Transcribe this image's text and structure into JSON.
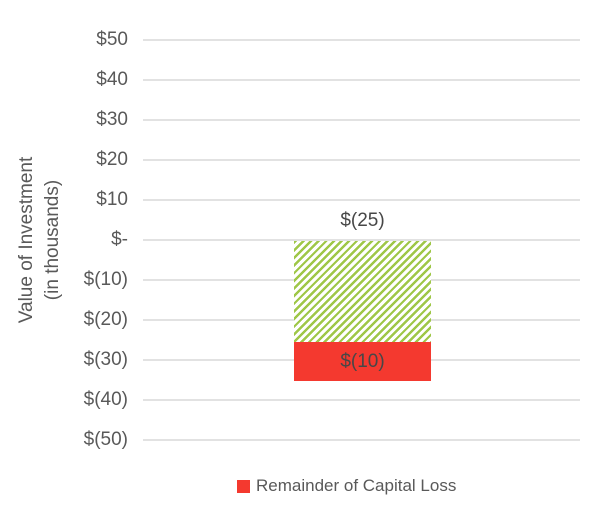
{
  "chart_data": {
    "type": "bar",
    "stacked": true,
    "categories": [
      ""
    ],
    "series": [
      {
        "name": "",
        "style": "diagonal-hatch",
        "color": "#9fc748",
        "values": [
          -25
        ],
        "data_label": "$(25)",
        "in_legend": false
      },
      {
        "name": "Remainder of Capital Loss",
        "style": "solid",
        "color": "#f4392f",
        "values": [
          -10
        ],
        "data_label": "$(10)",
        "in_legend": true
      }
    ],
    "title": "",
    "xlabel": "",
    "ylabel": "Value of Investment (in thousands)",
    "ylabel_lines": [
      "Value of Investment",
      "(in thousands)"
    ],
    "yticks": [
      "$50",
      "$40",
      "$30",
      "$20",
      "$10",
      "$-",
      "$(10)",
      "$(20)",
      "$(30)",
      "$(40)",
      "$(50)"
    ],
    "ytick_values": [
      50,
      40,
      30,
      20,
      10,
      0,
      -10,
      -20,
      -30,
      -40,
      -50
    ],
    "ylim": [
      -50,
      50
    ],
    "grid": true,
    "legend_position": "bottom",
    "legend": [
      {
        "label": "Remainder of Capital Loss",
        "color": "#f4392f"
      }
    ],
    "colors": {
      "background": "#ffffff",
      "text": "#595959",
      "data_label_text": "#474747",
      "gridline": "#e2e2e2",
      "hatch_green": "#9fc748",
      "solid_red": "#f4392f"
    }
  }
}
